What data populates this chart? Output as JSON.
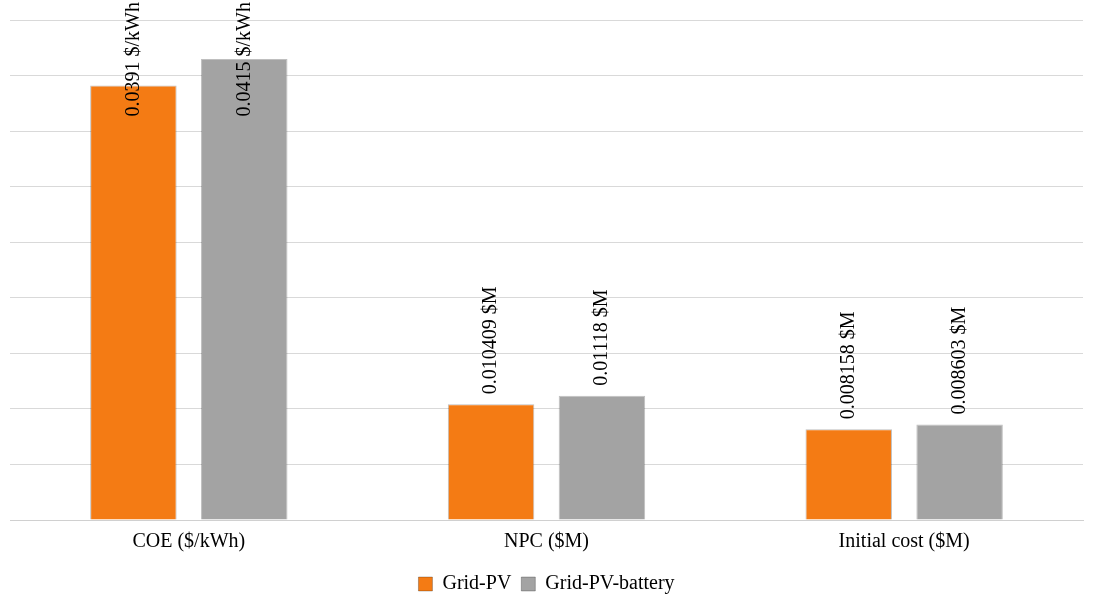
{
  "chart_data": {
    "type": "bar",
    "categories": [
      "COE ($/kWh)",
      "NPC ($M)",
      "Initial cost ($M)"
    ],
    "series": [
      {
        "name": "Grid-PV",
        "color": "#f47b14",
        "values": [
          0.0391,
          0.010409,
          0.008158
        ],
        "value_labels": [
          "0.0391 $/kWh",
          "0.010409 $M",
          "0.008158 $M"
        ]
      },
      {
        "name": "Grid-PV-battery",
        "color": "#a3a3a3",
        "values": [
          0.0415,
          0.01118,
          0.008603
        ],
        "value_labels": [
          "0.0415 $/kWh",
          "0.01118 $M",
          "0.008603 $M"
        ]
      }
    ],
    "ylim": [
      0,
      0.045
    ],
    "yticks": [
      {
        "value": 0,
        "label": null
      },
      {
        "value": 0.005,
        "label": null
      },
      {
        "value": 0.01,
        "label": null
      },
      {
        "value": 0.015,
        "label": null
      },
      {
        "value": 0.02,
        "label": null
      },
      {
        "value": 0.025,
        "label": null
      },
      {
        "value": 0.03,
        "label": null
      },
      {
        "value": 0.035,
        "label": null
      },
      {
        "value": 0.04,
        "label": null
      },
      {
        "value": 0.045,
        "label": null
      }
    ],
    "tick_labels": "x",
    "grid": "y",
    "legend": "bottom"
  }
}
